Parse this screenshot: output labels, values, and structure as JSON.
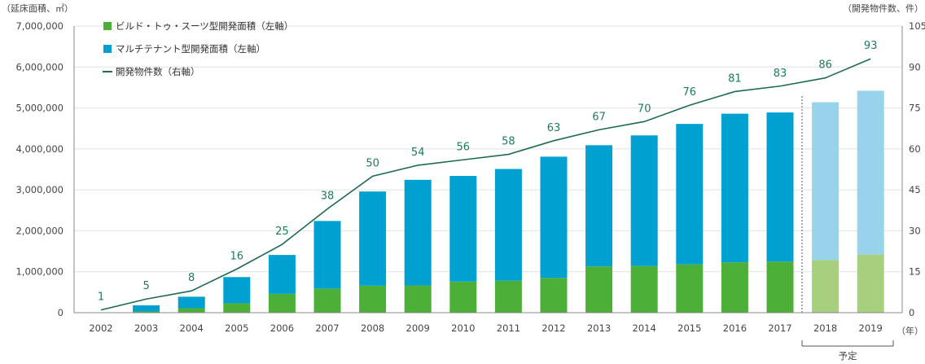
{
  "chart_data": {
    "type": "bar",
    "categories": [
      "2002",
      "2003",
      "2004",
      "2005",
      "2006",
      "2007",
      "2008",
      "2009",
      "2010",
      "2011",
      "2012",
      "2013",
      "2014",
      "2015",
      "2016",
      "2017",
      "2018",
      "2019"
    ],
    "series": [
      {
        "name": "ビルド・トゥ・スーツ型開発面積（左軸）",
        "type": "bar",
        "stack": "area",
        "values": [
          0,
          30000,
          110000,
          230000,
          460000,
          590000,
          660000,
          665000,
          760000,
          780000,
          850000,
          1130000,
          1140000,
          1180000,
          1230000,
          1250000,
          1290000,
          1420000
        ]
      },
      {
        "name": "マルチテナント型開発面積（左軸）",
        "type": "bar",
        "stack": "area",
        "values": [
          0,
          150000,
          280000,
          640000,
          950000,
          1650000,
          2300000,
          2580000,
          2580000,
          2730000,
          2960000,
          2960000,
          3190000,
          3430000,
          3630000,
          3640000,
          3850000,
          4000000
        ]
      },
      {
        "name": "開発物件数（右軸）",
        "type": "line",
        "axis": "right",
        "values": [
          1,
          5,
          8,
          16,
          25,
          38,
          50,
          54,
          56,
          58,
          63,
          67,
          70,
          76,
          81,
          83,
          86,
          93
        ]
      }
    ],
    "planned_categories": [
      "2018",
      "2019"
    ],
    "planned_label": "予定",
    "y_left": {
      "label": "（延床面積、㎡）",
      "ylim": [
        0,
        7000000
      ],
      "ticks": [
        "0",
        "1,000,000",
        "2,000,000",
        "3,000,000",
        "4,000,000",
        "5,000,000",
        "6,000,000",
        "7,000,000"
      ]
    },
    "y_right": {
      "label": "（開発物件数、件）",
      "ylim": [
        0,
        105
      ],
      "ticks": [
        "0",
        "15",
        "30",
        "45",
        "60",
        "75",
        "90",
        "105"
      ]
    },
    "xlabel": "（年）",
    "colors": {
      "bts": "#4caf37",
      "bts_planned": "#a6d07e",
      "multi": "#00a0d0",
      "multi_planned": "#97d3ea",
      "line": "#1e6b52",
      "label": "#1e7a5e"
    }
  }
}
